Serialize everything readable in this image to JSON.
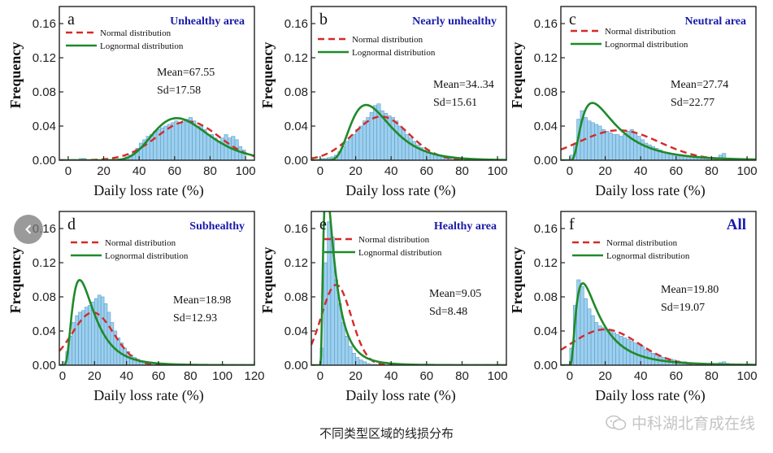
{
  "caption": "不同类型区域的线损分布",
  "watermark": "中科湖北育成在线",
  "legend_labels": [
    "Normal distribution",
    "Lognormal distribution"
  ],
  "colors": {
    "bar_fill": "#9dd0ee",
    "bar_stroke": "#5a9cc8",
    "normal": "#d42a2a",
    "lognormal": "#1f8a2a",
    "title": "#1a1aaa"
  },
  "icons": {
    "prev": "chevron-left-icon",
    "watermark": "wechat-icon"
  },
  "chart_data": [
    {
      "type": "bar",
      "panel": "a",
      "title": "Unhealthy area",
      "xlabel": "Daily loss rate (%)",
      "ylabel": "Frequency",
      "xlim": [
        -5,
        105
      ],
      "ylim": [
        0,
        0.18
      ],
      "xticks": [
        0,
        20,
        40,
        60,
        80,
        100
      ],
      "yticks": [
        0,
        0.04,
        0.08,
        0.12,
        0.16
      ],
      "stats": [
        "Mean=67.55",
        "Sd=17.58"
      ],
      "bins": {
        "start": 0,
        "width": 2,
        "values": [
          0,
          0,
          0,
          0.002,
          0.002,
          0,
          0,
          0,
          0,
          0,
          0,
          0,
          0,
          0,
          0,
          0.002,
          0.004,
          0.006,
          0.01,
          0.014,
          0.02,
          0.024,
          0.028,
          0.03,
          0.034,
          0.036,
          0.038,
          0.04,
          0.042,
          0.044,
          0.046,
          0.044,
          0.046,
          0.048,
          0.05,
          0.046,
          0.04,
          0.04,
          0.036,
          0.03,
          0.03,
          0.026,
          0.022,
          0.026,
          0.03,
          0.026,
          0.028,
          0.024,
          0.016,
          0.012
        ]
      },
      "curves": {
        "normal": {
          "mean": 67.55,
          "sd": 17.58
        },
        "lognormal": {
          "mean": 67.55,
          "sd": 17.58
        }
      }
    },
    {
      "type": "bar",
      "panel": "b",
      "title": "Nearly unhealthy",
      "xlabel": "Daily loss rate (%)",
      "ylabel": "Frequency",
      "xlim": [
        -5,
        105
      ],
      "ylim": [
        0,
        0.18
      ],
      "xticks": [
        0,
        20,
        40,
        60,
        80,
        100
      ],
      "yticks": [
        0,
        0.04,
        0.08,
        0.12,
        0.16
      ],
      "stats": [
        "Mean=34..34",
        "Sd=15.61"
      ],
      "bins": {
        "start": 0,
        "width": 2,
        "values": [
          0.002,
          0.002,
          0.003,
          0.004,
          0.006,
          0.01,
          0.016,
          0.022,
          0.026,
          0.03,
          0.036,
          0.04,
          0.046,
          0.05,
          0.056,
          0.064,
          0.066,
          0.058,
          0.055,
          0.052,
          0.05,
          0.046,
          0.04,
          0.036,
          0.03,
          0.026,
          0.022,
          0.018,
          0.015,
          0.012,
          0.01,
          0.008,
          0.006,
          0.005,
          0.004,
          0.003,
          0.002,
          0.001,
          0.001,
          0.001,
          0,
          0,
          0,
          0,
          0,
          0,
          0,
          0,
          0,
          0
        ]
      },
      "curves": {
        "normal": {
          "mean": 34.34,
          "sd": 15.61
        },
        "lognormal": {
          "mean": 34.34,
          "sd": 15.61
        }
      }
    },
    {
      "type": "bar",
      "panel": "c",
      "title": "Neutral area",
      "xlabel": "Daily loss rate (%)",
      "ylabel": "Frequency",
      "xlim": [
        -5,
        105
      ],
      "ylim": [
        0,
        0.18
      ],
      "xticks": [
        0,
        20,
        40,
        60,
        80,
        100
      ],
      "yticks": [
        0,
        0.04,
        0.08,
        0.12,
        0.16
      ],
      "stats": [
        "Mean=27.74",
        "Sd=22.77"
      ],
      "bins": {
        "start": 0,
        "width": 2,
        "values": [
          0.006,
          0.02,
          0.048,
          0.058,
          0.05,
          0.046,
          0.044,
          0.042,
          0.04,
          0.036,
          0.034,
          0.032,
          0.03,
          0.03,
          0.028,
          0.03,
          0.034,
          0.036,
          0.032,
          0.028,
          0.024,
          0.02,
          0.018,
          0.016,
          0.014,
          0.012,
          0.01,
          0.009,
          0.008,
          0.007,
          0.006,
          0.005,
          0.005,
          0.004,
          0.004,
          0.003,
          0.003,
          0.002,
          0.002,
          0.002,
          0.002,
          0.002,
          0.006,
          0.008,
          0.002,
          0.001,
          0.001,
          0.001,
          0,
          0
        ]
      },
      "curves": {
        "normal": {
          "mean": 27.74,
          "sd": 22.77
        },
        "lognormal": {
          "mean": 27.74,
          "sd": 22.77
        }
      }
    },
    {
      "type": "bar",
      "panel": "d",
      "title": "Subhealthy",
      "xlabel": "Daily loss rate (%)",
      "ylabel": "Frequency",
      "xlim": [
        -2,
        120
      ],
      "ylim": [
        0,
        0.18
      ],
      "xticks": [
        0,
        20,
        40,
        60,
        80,
        100,
        120
      ],
      "yticks": [
        0,
        0.04,
        0.08,
        0.12,
        0.16
      ],
      "stats": [
        "Mean=18.98",
        "Sd=12.93"
      ],
      "bins": {
        "start": 0,
        "width": 2,
        "values": [
          0.004,
          0.016,
          0.034,
          0.05,
          0.058,
          0.062,
          0.064,
          0.068,
          0.07,
          0.074,
          0.078,
          0.082,
          0.08,
          0.072,
          0.062,
          0.05,
          0.04,
          0.032,
          0.026,
          0.02,
          0.016,
          0.012,
          0.009,
          0.007,
          0.005,
          0.004,
          0.003,
          0.002,
          0.002,
          0.001,
          0.001,
          0.001,
          0,
          0,
          0,
          0,
          0,
          0,
          0,
          0,
          0,
          0,
          0,
          0,
          0,
          0,
          0,
          0,
          0,
          0
        ]
      },
      "curves": {
        "normal": {
          "mean": 18.98,
          "sd": 12.93
        },
        "lognormal": {
          "mean": 18.98,
          "sd": 12.93
        }
      }
    },
    {
      "type": "bar",
      "panel": "e",
      "title": "Healthy area",
      "xlabel": "Daily loss rate (%)",
      "ylabel": "Frequency",
      "xlim": [
        -5,
        105
      ],
      "ylim": [
        0,
        0.18
      ],
      "xticks": [
        0,
        20,
        40,
        60,
        80,
        100
      ],
      "yticks": [
        0,
        0.04,
        0.08,
        0.12,
        0.16
      ],
      "stats": [
        "Mean=9.05",
        "Sd=8.48"
      ],
      "bins": {
        "start": 0,
        "width": 2,
        "values": [
          0.02,
          0.12,
          0.168,
          0.15,
          0.1,
          0.072,
          0.05,
          0.034,
          0.022,
          0.014,
          0.009,
          0.006,
          0.004,
          0.002,
          0.001,
          0.001,
          0,
          0,
          0,
          0,
          0,
          0,
          0,
          0,
          0,
          0,
          0,
          0,
          0,
          0,
          0,
          0,
          0,
          0,
          0,
          0,
          0,
          0,
          0,
          0,
          0,
          0,
          0,
          0,
          0,
          0,
          0,
          0,
          0,
          0
        ]
      },
      "curves": {
        "normal": {
          "mean": 9.05,
          "sd": 8.48
        },
        "lognormal": {
          "mean": 9.05,
          "sd": 8.48
        }
      }
    },
    {
      "type": "bar",
      "panel": "f",
      "title": "All",
      "xlabel": "Daily loss rate (%)",
      "ylabel": "Frequency",
      "xlim": [
        -5,
        105
      ],
      "ylim": [
        0,
        0.18
      ],
      "xticks": [
        0,
        20,
        40,
        60,
        80,
        100
      ],
      "yticks": [
        0,
        0.04,
        0.08,
        0.12,
        0.16
      ],
      "stats": [
        "Mean=19.80",
        "Sd=19.07"
      ],
      "bins": {
        "start": 0,
        "width": 2,
        "values": [
          0.02,
          0.07,
          0.1,
          0.092,
          0.078,
          0.066,
          0.058,
          0.05,
          0.046,
          0.044,
          0.042,
          0.04,
          0.038,
          0.036,
          0.034,
          0.032,
          0.03,
          0.028,
          0.026,
          0.024,
          0.022,
          0.018,
          0.016,
          0.014,
          0.012,
          0.01,
          0.009,
          0.008,
          0.007,
          0.006,
          0.005,
          0.004,
          0.004,
          0.003,
          0.003,
          0.002,
          0.002,
          0.002,
          0.002,
          0.002,
          0.002,
          0.002,
          0.003,
          0.004,
          0.002,
          0.001,
          0.001,
          0,
          0,
          0
        ]
      },
      "curves": {
        "normal": {
          "mean": 19.8,
          "sd": 19.07
        },
        "lognormal": {
          "mean": 19.8,
          "sd": 19.07
        }
      }
    }
  ]
}
